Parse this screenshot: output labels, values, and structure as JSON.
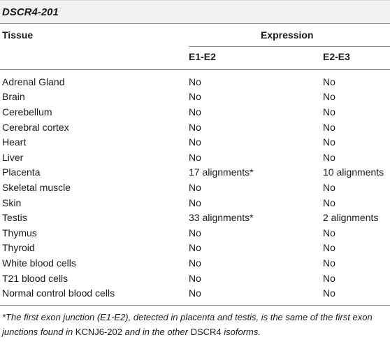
{
  "title": "DSCR4-201",
  "header": {
    "tissue": "Tissue",
    "expression": "Expression",
    "col1": "E1-E2",
    "col2": "E2-E3"
  },
  "rows": [
    [
      "Adrenal Gland",
      "No",
      "No"
    ],
    [
      "Brain",
      "No",
      "No"
    ],
    [
      "Cerebellum",
      "No",
      "No"
    ],
    [
      "Cerebral cortex",
      "No",
      "No"
    ],
    [
      "Heart",
      "No",
      "No"
    ],
    [
      "Liver",
      "No",
      "No"
    ],
    [
      "Placenta",
      "17 alignments*",
      "10 alignments"
    ],
    [
      "Skeletal muscle",
      "No",
      "No"
    ],
    [
      "Skin",
      "No",
      "No"
    ],
    [
      "Testis",
      "33 alignments*",
      "2 alignments"
    ],
    [
      "Thymus",
      "No",
      "No"
    ],
    [
      "Thyroid",
      "No",
      "No"
    ],
    [
      "White blood cells",
      "No",
      "No"
    ],
    [
      "T21 blood cells",
      "No",
      "No"
    ],
    [
      "Normal control blood cells",
      "No",
      "No"
    ]
  ],
  "footnote": {
    "part1": "*The first exon junction (E1-E2), detected in placenta and testis, is the same of the first exon junctions found in ",
    "gene1": "KCNJ6-202",
    "part2": " and in the other ",
    "gene2": "DSCR4",
    "part3": " isoforms."
  }
}
